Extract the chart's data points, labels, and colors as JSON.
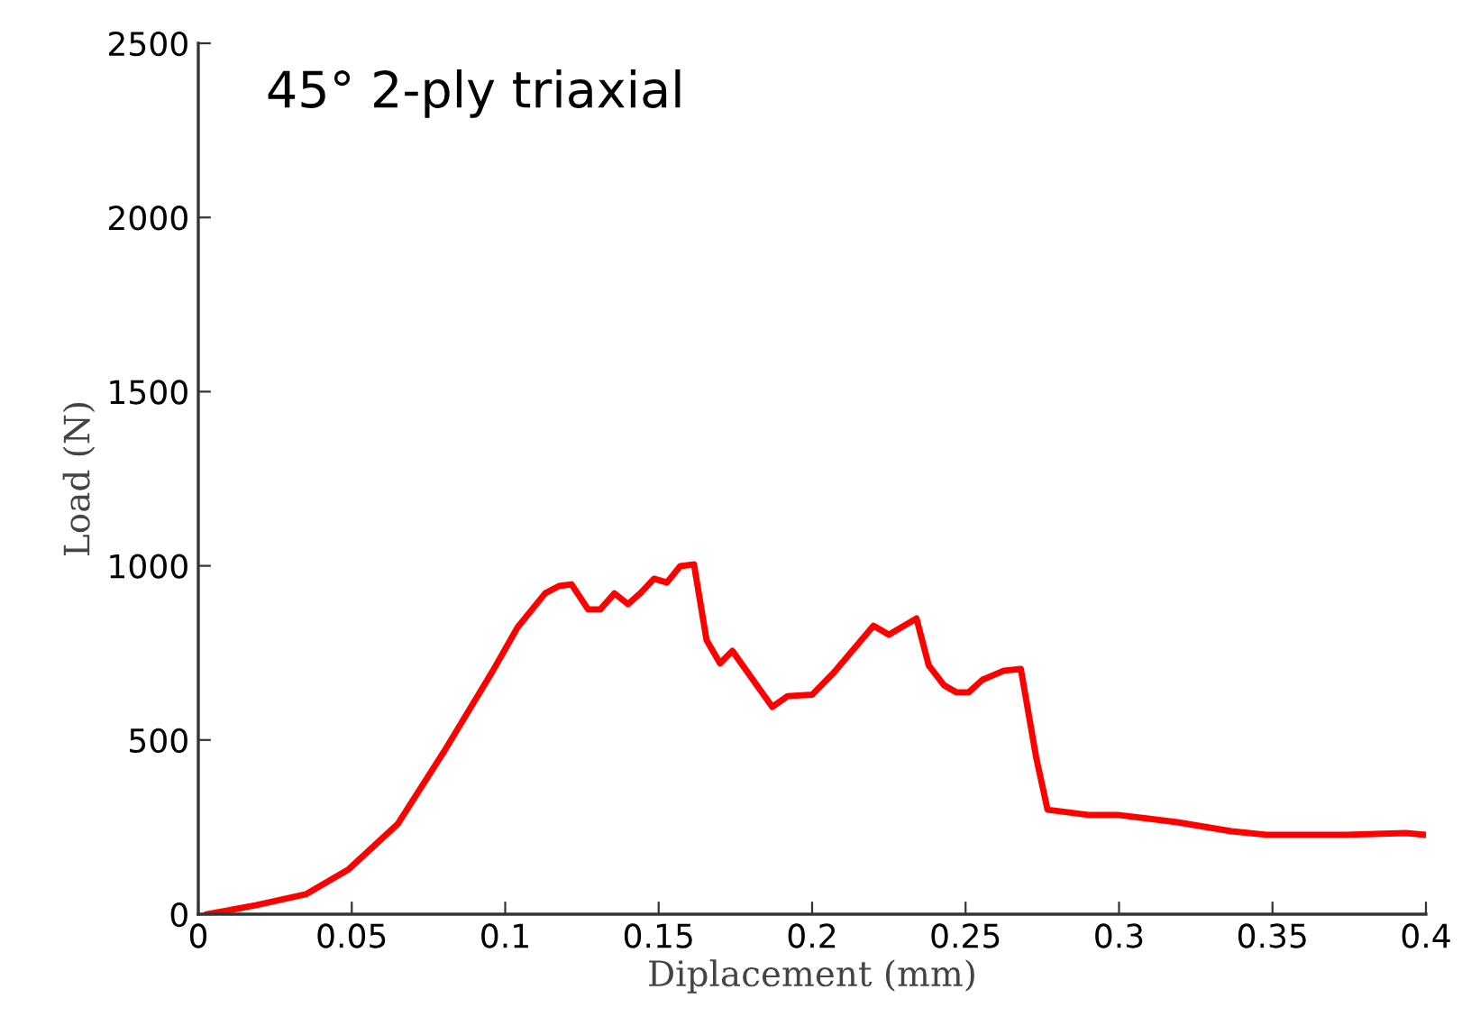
{
  "chart_data": {
    "type": "line",
    "title": "45° 2-ply triaxial",
    "xlabel": "Diplacement (mm)",
    "ylabel": "Load (N)",
    "xlim": [
      0,
      0.4
    ],
    "xticks": [
      0,
      0.05,
      0.1,
      0.15,
      0.2,
      0.25,
      0.3,
      0.35,
      0.4
    ],
    "ylim": [
      0,
      2500
    ],
    "yticks": [
      0,
      500,
      1000,
      1500,
      2000,
      2500
    ],
    "grid": false,
    "series": [
      {
        "color": "#ff0000",
        "x": [
          0.003,
          0.019,
          0.035,
          0.049,
          0.065,
          0.08,
          0.096,
          0.104,
          0.113,
          0.1175,
          0.1216,
          0.127,
          0.131,
          0.1356,
          0.14,
          0.144,
          0.1485,
          0.1527,
          0.157,
          0.1615,
          0.1656,
          0.17,
          0.174,
          0.187,
          0.192,
          0.2,
          0.207,
          0.22,
          0.225,
          0.234,
          0.238,
          0.243,
          0.247,
          0.251,
          0.2555,
          0.2625,
          0.268,
          0.273,
          0.2767,
          0.29,
          0.2996,
          0.319,
          0.3366,
          0.348,
          0.374,
          0.3935,
          0.4
        ],
        "values": [
          0,
          26,
          57,
          129,
          259,
          466,
          699,
          823,
          921,
          942,
          947,
          875,
          875,
          921,
          890,
          921,
          963,
          952,
          999,
          1004,
          787,
          720,
          756,
          595,
          626,
          630,
          693,
          828,
          802,
          849,
          714,
          657,
          637,
          637,
          673,
          699,
          704,
          450,
          300,
          285,
          285,
          264,
          238,
          228,
          228,
          233,
          228
        ]
      }
    ]
  }
}
